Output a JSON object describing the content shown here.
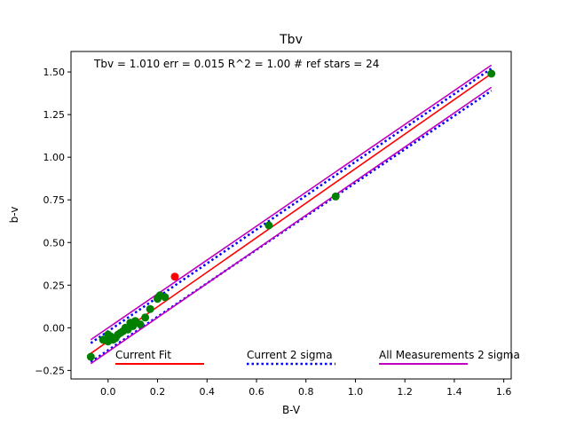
{
  "chart_data": {
    "type": "scatter",
    "title": "Tbv",
    "xlabel": "B-V",
    "ylabel": "b-v",
    "xlim": [
      -0.15,
      1.63
    ],
    "ylim": [
      -0.3,
      1.62
    ],
    "grid": false,
    "x_ticks": [
      0.0,
      0.2,
      0.4,
      0.6,
      0.8,
      1.0,
      1.2,
      1.4,
      1.6
    ],
    "x_tick_labels": [
      "0.0",
      "0.2",
      "0.4",
      "0.6",
      "0.8",
      "1.0",
      "1.2",
      "1.4",
      "1.6"
    ],
    "y_ticks": [
      -0.25,
      0.0,
      0.25,
      0.5,
      0.75,
      1.0,
      1.25,
      1.5
    ],
    "y_tick_labels": [
      "−0.25",
      "0.00",
      "0.25",
      "0.50",
      "0.75",
      "1.00",
      "1.25",
      "1.50"
    ],
    "annotation": "Tbv =  1.010 err = 0.015  R^2 = 1.00  # ref stars =  24",
    "colors": {
      "points": "#008000",
      "outlier": "#ff0000",
      "current_fit": "#ff0000",
      "current_2sigma": "#0000ff",
      "all_2sigma": "#bf00bf"
    },
    "points": [
      {
        "x": -0.07,
        "y": -0.17
      },
      {
        "x": -0.02,
        "y": -0.07
      },
      {
        "x": 0.0,
        "y": -0.04
      },
      {
        "x": 0.0,
        "y": -0.08
      },
      {
        "x": 0.01,
        "y": -0.05
      },
      {
        "x": 0.02,
        "y": -0.07
      },
      {
        "x": 0.03,
        "y": -0.06
      },
      {
        "x": 0.04,
        "y": -0.04
      },
      {
        "x": 0.05,
        "y": -0.03
      },
      {
        "x": 0.06,
        "y": -0.02
      },
      {
        "x": 0.07,
        "y": 0.0
      },
      {
        "x": 0.08,
        "y": -0.01
      },
      {
        "x": 0.09,
        "y": 0.03
      },
      {
        "x": 0.1,
        "y": 0.01
      },
      {
        "x": 0.11,
        "y": 0.04
      },
      {
        "x": 0.13,
        "y": 0.02
      },
      {
        "x": 0.15,
        "y": 0.06
      },
      {
        "x": 0.17,
        "y": 0.11
      },
      {
        "x": 0.2,
        "y": 0.17
      },
      {
        "x": 0.21,
        "y": 0.19
      },
      {
        "x": 0.23,
        "y": 0.18
      },
      {
        "x": 0.65,
        "y": 0.6
      },
      {
        "x": 0.92,
        "y": 0.77
      },
      {
        "x": 1.55,
        "y": 1.49
      }
    ],
    "outliers": [
      {
        "x": 0.27,
        "y": 0.3
      }
    ],
    "lines": [
      {
        "name": "Current Fit",
        "x": [
          -0.07,
          1.55
        ],
        "y": [
          -0.15,
          1.49
        ],
        "style": "solid"
      },
      {
        "name": "Current 2 sigma",
        "x": [
          -0.07,
          1.55
        ],
        "y": [
          -0.09,
          1.52
        ],
        "style": "dotted"
      },
      {
        "name": "Current 2 sigma",
        "x": [
          -0.07,
          1.55
        ],
        "y": [
          -0.2,
          1.39
        ],
        "style": "dotted"
      },
      {
        "name": "All Measurements 2 sigma",
        "x": [
          -0.07,
          1.55
        ],
        "y": [
          -0.07,
          1.54
        ],
        "style": "solid"
      },
      {
        "name": "All Measurements 2 sigma",
        "x": [
          -0.07,
          1.55
        ],
        "y": [
          -0.21,
          1.41
        ],
        "style": "solid"
      }
    ],
    "legend": [
      {
        "label": "Current Fit",
        "key": "current_fit",
        "style": "solid"
      },
      {
        "label": "Current 2 sigma",
        "key": "current_2sigma",
        "style": "dotted"
      },
      {
        "label": "All Measurements 2 sigma",
        "key": "all_2sigma",
        "style": "solid"
      }
    ]
  }
}
